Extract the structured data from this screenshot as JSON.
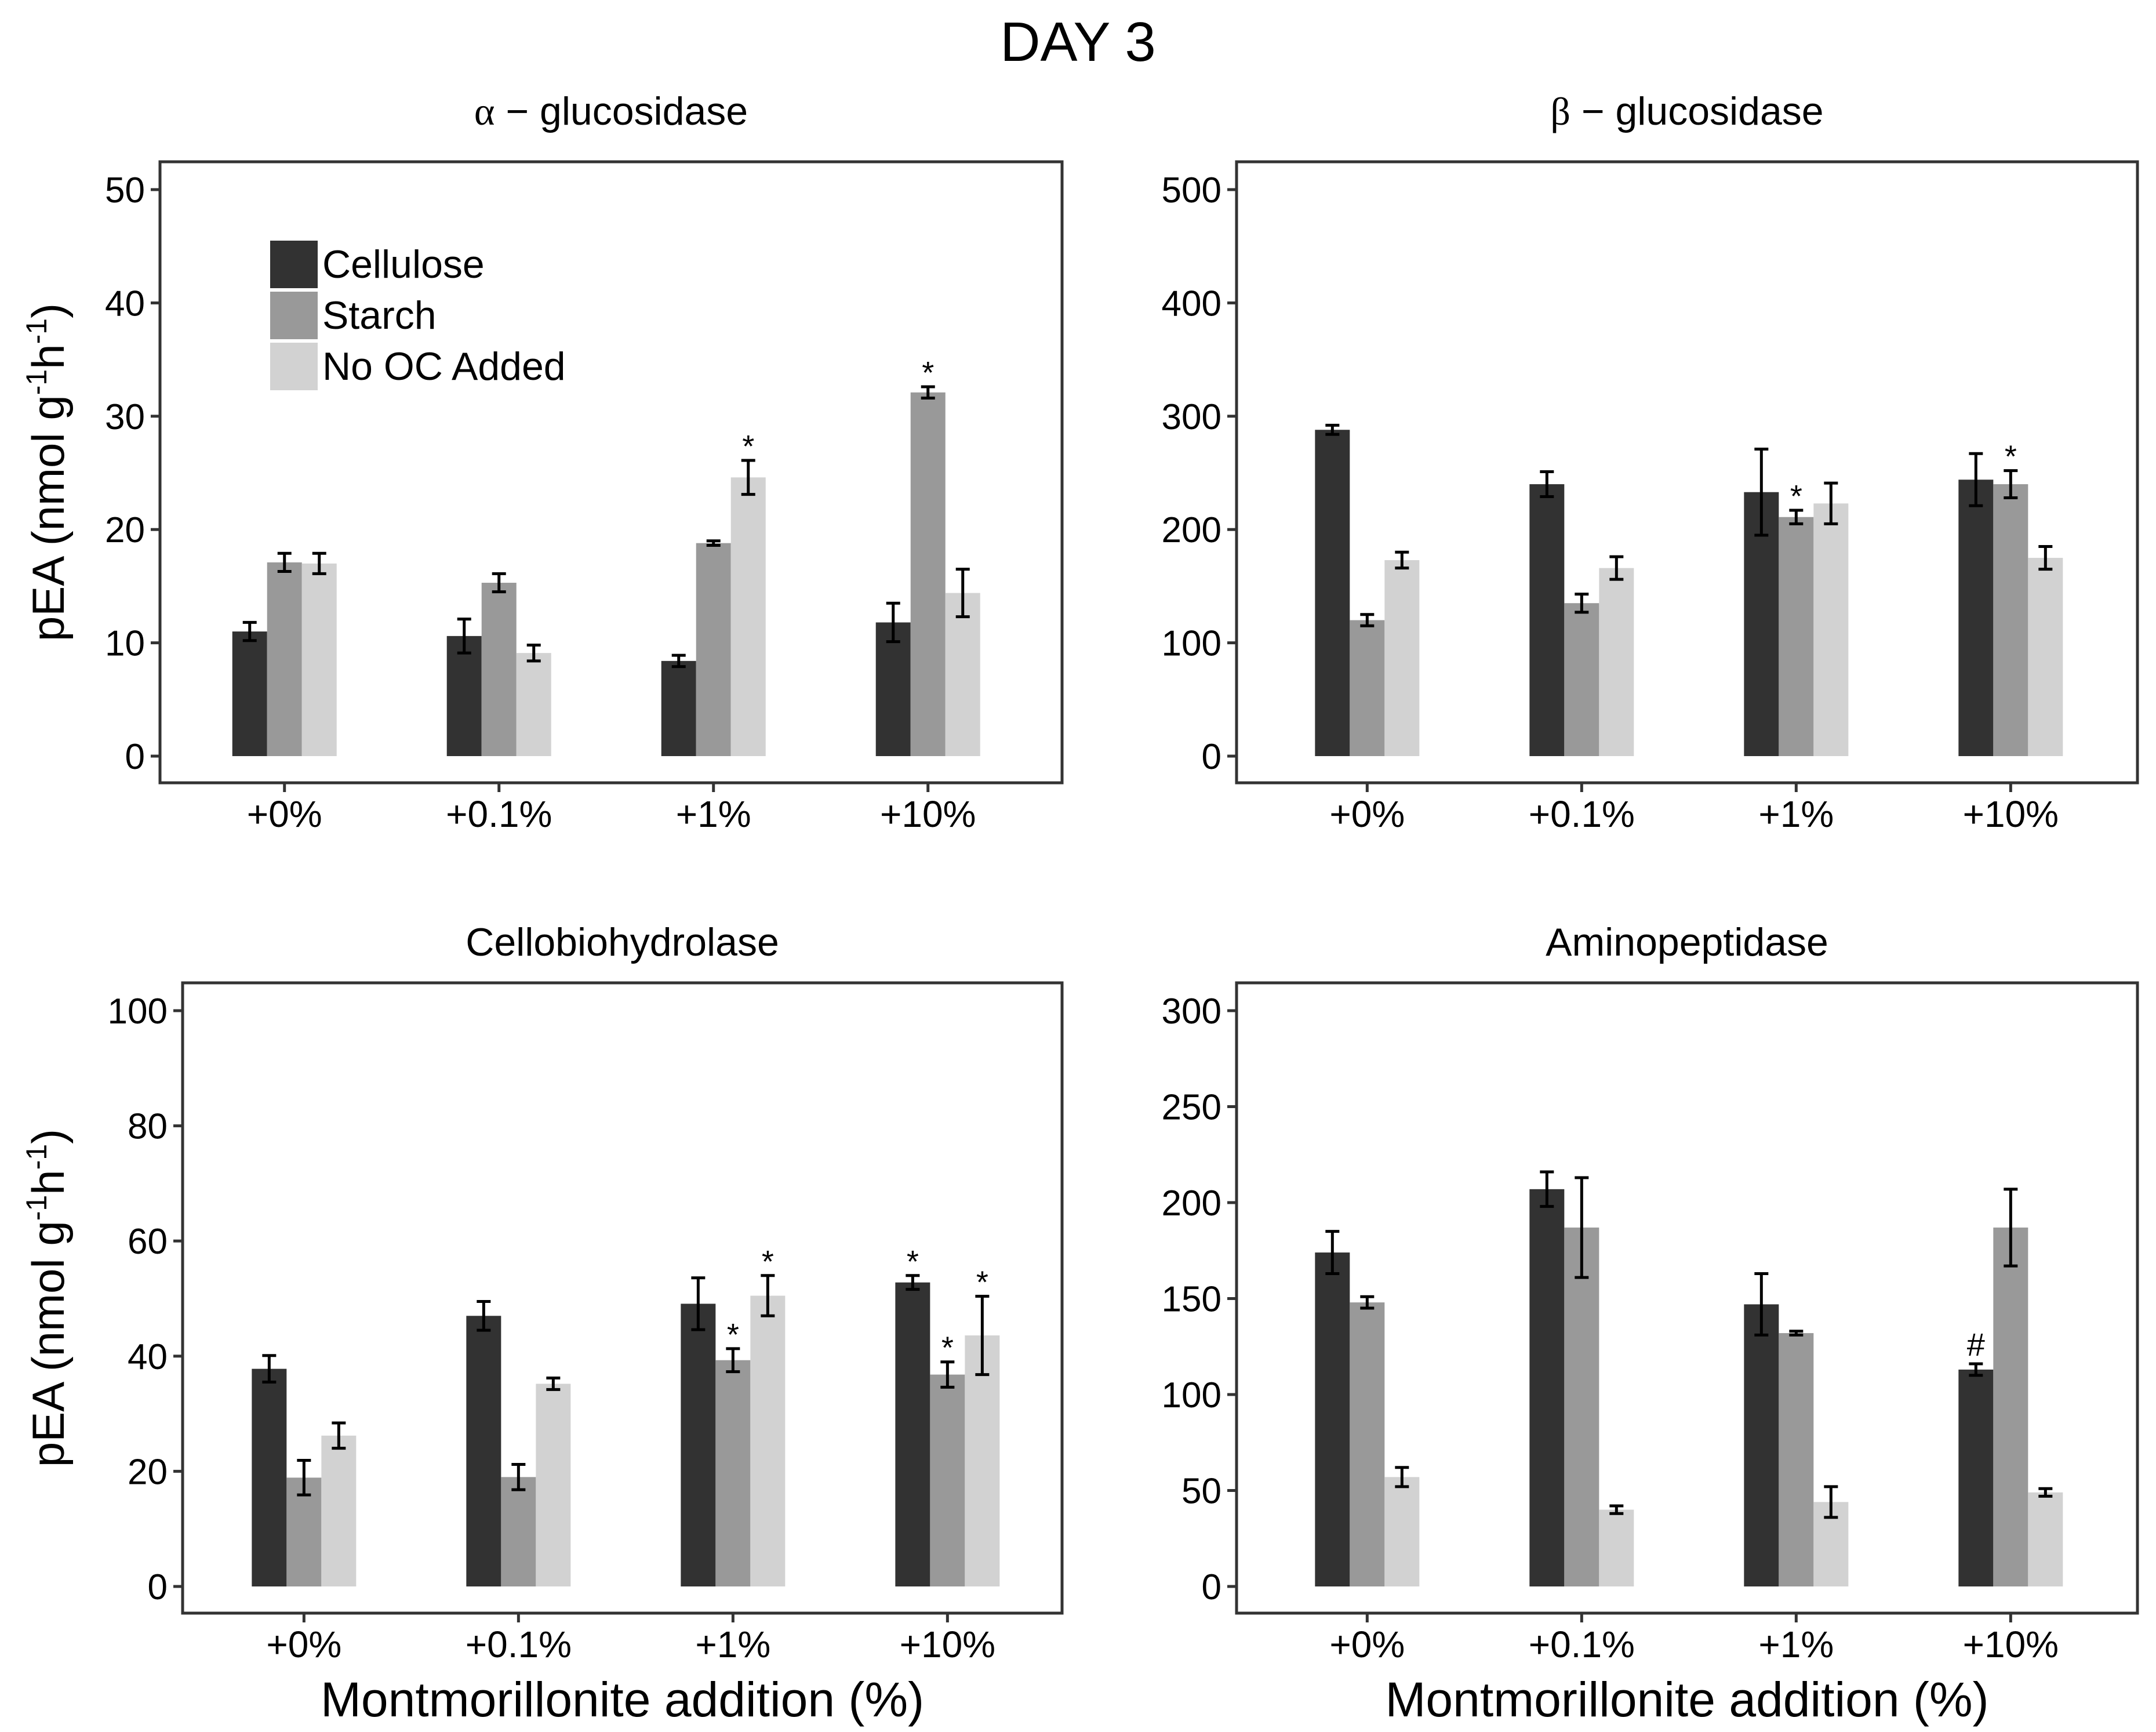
{
  "title": "DAY 3",
  "legend": {
    "labels": [
      "Cellulose",
      "Starch",
      "No OC Added"
    ]
  },
  "colors": {
    "Cellulose": "#323232",
    "Starch": "#999999",
    "No OC Added": "#d2d2d2",
    "axis": "#333333"
  },
  "chart_data": [
    {
      "type": "bar",
      "title_symbol": "α",
      "title": "− glucosidase",
      "xlabel": "",
      "ylabel": "pEA (nmol g",
      "ylabel_exp1": "-1",
      "ylabel_mid": "h",
      "ylabel_exp2": "-1",
      "ylabel_end": ")",
      "ylim": [
        0,
        50
      ],
      "yticks": [
        0,
        10,
        20,
        30,
        40,
        50
      ],
      "categories": [
        "+0%",
        "+0.1%",
        "+1%",
        "+10%"
      ],
      "series": [
        {
          "name": "Cellulose",
          "values": [
            11,
            10.6,
            8.4,
            11.8
          ],
          "errors": [
            0.8,
            1.5,
            0.5,
            1.7
          ],
          "annotations": [
            "",
            "",
            "",
            ""
          ]
        },
        {
          "name": "Starch",
          "values": [
            17.1,
            15.3,
            18.8,
            32.1
          ],
          "errors": [
            0.8,
            0.8,
            0.2,
            0.5
          ],
          "annotations": [
            "",
            "",
            "",
            "*"
          ]
        },
        {
          "name": "No OC Added",
          "values": [
            17,
            9.1,
            24.6,
            14.4
          ],
          "errors": [
            0.9,
            0.7,
            1.5,
            2.1
          ],
          "annotations": [
            "",
            "",
            "*",
            ""
          ]
        }
      ]
    },
    {
      "type": "bar",
      "title_symbol": "β",
      "title": "− glucosidase",
      "xlabel": "",
      "ylabel": "",
      "ylim": [
        0,
        500
      ],
      "yticks": [
        0,
        100,
        200,
        300,
        400,
        500
      ],
      "categories": [
        "+0%",
        "+0.1%",
        "+1%",
        "+10%"
      ],
      "series": [
        {
          "name": "Cellulose",
          "values": [
            288,
            240,
            233,
            244
          ],
          "errors": [
            4,
            11,
            38,
            23
          ],
          "annotations": [
            "",
            "",
            "",
            ""
          ]
        },
        {
          "name": "Starch",
          "values": [
            120,
            135,
            211,
            240
          ],
          "errors": [
            5,
            8,
            6,
            12
          ],
          "annotations": [
            "",
            "",
            "*",
            "*"
          ]
        },
        {
          "name": "No OC Added",
          "values": [
            173,
            166,
            223,
            175
          ],
          "errors": [
            7,
            10,
            18,
            10
          ],
          "annotations": [
            "",
            "",
            "",
            ""
          ]
        }
      ]
    },
    {
      "type": "bar",
      "title": "Cellobiohydrolase",
      "xlabel": "Montmorillonite addition (%)",
      "ylabel": "pEA (nmol g",
      "ylabel_exp1": "-1",
      "ylabel_mid": "h",
      "ylabel_exp2": "-1",
      "ylabel_end": ")",
      "ylim": [
        0,
        100
      ],
      "yticks": [
        0,
        20,
        40,
        60,
        80,
        100
      ],
      "categories": [
        "+0%",
        "+0.1%",
        "+1%",
        "+10%"
      ],
      "series": [
        {
          "name": "Cellulose",
          "values": [
            37.8,
            47,
            49.1,
            52.8
          ],
          "errors": [
            2.3,
            2.5,
            4.5,
            1.2
          ],
          "annotations": [
            "",
            "",
            "",
            "*"
          ]
        },
        {
          "name": "Starch",
          "values": [
            18.9,
            19,
            39.3,
            36.8
          ],
          "errors": [
            3,
            2.2,
            2,
            2.2
          ],
          "annotations": [
            "",
            "",
            "*",
            "*"
          ]
        },
        {
          "name": "No OC Added",
          "values": [
            26.2,
            35.2,
            50.5,
            43.6
          ],
          "errors": [
            2.2,
            1,
            3.5,
            6.8
          ],
          "annotations": [
            "",
            "",
            "*",
            "*"
          ]
        }
      ]
    },
    {
      "type": "bar",
      "title": "Aminopeptidase",
      "xlabel": "Montmorillonite addition (%)",
      "ylabel": "",
      "ylim": [
        0,
        300
      ],
      "yticks": [
        0,
        50,
        100,
        150,
        200,
        250,
        300
      ],
      "categories": [
        "+0%",
        "+0.1%",
        "+1%",
        "+10%"
      ],
      "series": [
        {
          "name": "Cellulose",
          "values": [
            174,
            207,
            147,
            113
          ],
          "errors": [
            11,
            9,
            16,
            3
          ],
          "annotations": [
            "",
            "",
            "",
            "#"
          ]
        },
        {
          "name": "Starch",
          "values": [
            148,
            187,
            132,
            187
          ],
          "errors": [
            3,
            26,
            1,
            20
          ],
          "annotations": [
            "",
            "",
            "",
            ""
          ]
        },
        {
          "name": "No OC Added",
          "values": [
            57,
            40,
            44,
            49
          ],
          "errors": [
            5,
            2,
            8,
            2
          ],
          "annotations": [
            "",
            "",
            "",
            ""
          ]
        }
      ]
    }
  ]
}
